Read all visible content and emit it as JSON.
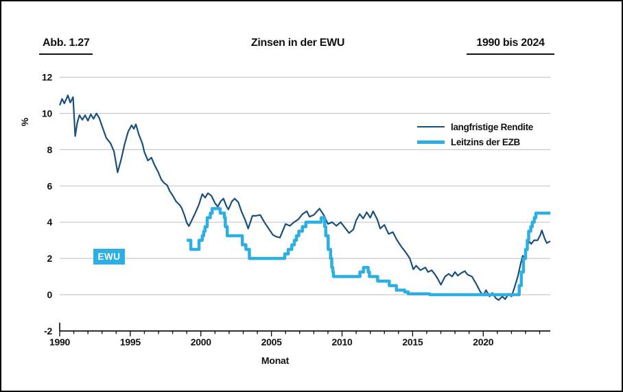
{
  "figure": {
    "label": "Abb. 1.27",
    "title": "Zinsen in der EWU",
    "period": "1990 bis 2024"
  },
  "colors": {
    "long_term_yield": "#184f7d",
    "ecb_rate": "#2eafe3",
    "gridline": "#c8c8c8",
    "axis": "#000000",
    "text": "#111111"
  },
  "chart_data": {
    "type": "line",
    "title": "Zinsen in der EWU",
    "xlabel": "Monat",
    "ylabel": "%",
    "xlim": [
      1990,
      2024.75
    ],
    "ylim": [
      -2,
      12
    ],
    "x_ticks": [
      1990,
      1995,
      2000,
      2005,
      2010,
      2015,
      2020
    ],
    "x_minor_tick_every": 1,
    "y_ticks": [
      -2,
      0,
      2,
      4,
      6,
      8,
      10,
      12
    ],
    "grid": "horizontal",
    "legend_position": "inside-upper-right",
    "annotation": {
      "text": "EWU",
      "x": 1993.1,
      "y": 2
    },
    "series": [
      {
        "name": "langfristige Rendite",
        "style": "line",
        "color": "#184f7d",
        "stroke_width": 2.2,
        "points": [
          [
            1990.0,
            10.45
          ],
          [
            1990.17,
            10.8
          ],
          [
            1990.33,
            10.55
          ],
          [
            1990.58,
            11.0
          ],
          [
            1990.75,
            10.6
          ],
          [
            1990.95,
            10.9
          ],
          [
            1991.1,
            8.75
          ],
          [
            1991.25,
            9.5
          ],
          [
            1991.4,
            9.9
          ],
          [
            1991.6,
            9.65
          ],
          [
            1991.8,
            9.9
          ],
          [
            1992.0,
            9.6
          ],
          [
            1992.2,
            9.95
          ],
          [
            1992.4,
            9.7
          ],
          [
            1992.6,
            10.0
          ],
          [
            1992.8,
            9.75
          ],
          [
            1993.0,
            9.3
          ],
          [
            1993.3,
            8.65
          ],
          [
            1993.6,
            8.35
          ],
          [
            1993.85,
            7.9
          ],
          [
            1994.1,
            6.75
          ],
          [
            1994.35,
            7.45
          ],
          [
            1994.6,
            8.3
          ],
          [
            1994.85,
            9.0
          ],
          [
            1995.1,
            9.35
          ],
          [
            1995.25,
            9.15
          ],
          [
            1995.4,
            9.4
          ],
          [
            1995.6,
            8.85
          ],
          [
            1995.85,
            8.35
          ],
          [
            1996.0,
            7.86
          ],
          [
            1996.25,
            7.4
          ],
          [
            1996.5,
            7.56
          ],
          [
            1996.7,
            7.18
          ],
          [
            1997.0,
            6.73
          ],
          [
            1997.2,
            6.35
          ],
          [
            1997.4,
            6.16
          ],
          [
            1997.6,
            6.05
          ],
          [
            1997.8,
            5.71
          ],
          [
            1998.0,
            5.48
          ],
          [
            1998.25,
            5.14
          ],
          [
            1998.5,
            4.95
          ],
          [
            1998.65,
            4.76
          ],
          [
            1998.85,
            4.35
          ],
          [
            1999.0,
            3.97
          ],
          [
            1999.15,
            3.78
          ],
          [
            1999.35,
            4.1
          ],
          [
            1999.6,
            4.5
          ],
          [
            1999.85,
            4.95
          ],
          [
            2000.1,
            5.55
          ],
          [
            2000.3,
            5.35
          ],
          [
            2000.5,
            5.6
          ],
          [
            2000.75,
            5.45
          ],
          [
            2001.0,
            5.05
          ],
          [
            2001.2,
            4.85
          ],
          [
            2001.4,
            5.15
          ],
          [
            2001.6,
            5.3
          ],
          [
            2001.8,
            4.9
          ],
          [
            2001.95,
            4.7
          ],
          [
            2002.2,
            5.15
          ],
          [
            2002.4,
            5.3
          ],
          [
            2002.65,
            5.1
          ],
          [
            2002.9,
            4.55
          ],
          [
            2003.15,
            4.1
          ],
          [
            2003.35,
            3.65
          ],
          [
            2003.65,
            4.35
          ],
          [
            2003.9,
            4.35
          ],
          [
            2004.2,
            4.4
          ],
          [
            2004.5,
            4.0
          ],
          [
            2004.8,
            3.65
          ],
          [
            2005.1,
            3.3
          ],
          [
            2005.35,
            3.2
          ],
          [
            2005.6,
            3.15
          ],
          [
            2006.0,
            3.9
          ],
          [
            2006.3,
            3.8
          ],
          [
            2006.6,
            4.0
          ],
          [
            2006.9,
            4.15
          ],
          [
            2007.2,
            4.45
          ],
          [
            2007.5,
            4.6
          ],
          [
            2007.7,
            4.3
          ],
          [
            2008.0,
            4.4
          ],
          [
            2008.4,
            4.75
          ],
          [
            2008.7,
            4.4
          ],
          [
            2009.0,
            3.9
          ],
          [
            2009.3,
            4.0
          ],
          [
            2009.6,
            3.8
          ],
          [
            2009.9,
            4.0
          ],
          [
            2010.2,
            3.7
          ],
          [
            2010.5,
            3.4
          ],
          [
            2010.8,
            3.6
          ],
          [
            2011.0,
            4.1
          ],
          [
            2011.25,
            4.45
          ],
          [
            2011.5,
            4.2
          ],
          [
            2011.75,
            4.55
          ],
          [
            2012.0,
            4.25
          ],
          [
            2012.2,
            4.6
          ],
          [
            2012.5,
            4.15
          ],
          [
            2012.7,
            3.65
          ],
          [
            2013.0,
            3.85
          ],
          [
            2013.3,
            3.35
          ],
          [
            2013.6,
            3.45
          ],
          [
            2013.9,
            3.0
          ],
          [
            2014.2,
            2.65
          ],
          [
            2014.5,
            2.35
          ],
          [
            2014.8,
            2.0
          ],
          [
            2015.05,
            1.4
          ],
          [
            2015.25,
            1.6
          ],
          [
            2015.55,
            1.35
          ],
          [
            2015.9,
            1.5
          ],
          [
            2016.1,
            1.25
          ],
          [
            2016.35,
            1.35
          ],
          [
            2016.6,
            1.1
          ],
          [
            2016.8,
            0.85
          ],
          [
            2017.0,
            0.55
          ],
          [
            2017.3,
            1.0
          ],
          [
            2017.55,
            1.15
          ],
          [
            2017.8,
            1.0
          ],
          [
            2018.0,
            1.25
          ],
          [
            2018.2,
            1.05
          ],
          [
            2018.45,
            1.2
          ],
          [
            2018.7,
            1.3
          ],
          [
            2018.9,
            1.1
          ],
          [
            2019.2,
            1.0
          ],
          [
            2019.5,
            0.6
          ],
          [
            2019.8,
            0.15
          ],
          [
            2020.0,
            -0.05
          ],
          [
            2020.2,
            0.25
          ],
          [
            2020.45,
            -0.1
          ],
          [
            2020.65,
            0.1
          ],
          [
            2020.9,
            -0.2
          ],
          [
            2021.1,
            -0.3
          ],
          [
            2021.35,
            -0.1
          ],
          [
            2021.55,
            -0.25
          ],
          [
            2021.8,
            0.05
          ],
          [
            2022.0,
            -0.1
          ],
          [
            2022.2,
            0.35
          ],
          [
            2022.45,
            1.0
          ],
          [
            2022.65,
            1.7
          ],
          [
            2022.8,
            2.15
          ],
          [
            2022.95,
            1.95
          ],
          [
            2023.1,
            2.6
          ],
          [
            2023.25,
            2.95
          ],
          [
            2023.4,
            2.8
          ],
          [
            2023.6,
            3.0
          ],
          [
            2023.85,
            3.0
          ],
          [
            2024.05,
            3.3
          ],
          [
            2024.15,
            3.55
          ],
          [
            2024.35,
            3.1
          ],
          [
            2024.5,
            2.85
          ],
          [
            2024.75,
            2.95
          ]
        ]
      },
      {
        "name": "Leitzins der EZB",
        "style": "step",
        "color": "#2eafe3",
        "stroke_width": 4.5,
        "points": [
          [
            1999.0,
            3.0
          ],
          [
            1999.29,
            2.5
          ],
          [
            1999.87,
            3.0
          ],
          [
            2000.1,
            3.25
          ],
          [
            2000.2,
            3.5
          ],
          [
            2000.3,
            3.75
          ],
          [
            2000.45,
            4.25
          ],
          [
            2000.67,
            4.5
          ],
          [
            2000.8,
            4.75
          ],
          [
            2001.37,
            4.5
          ],
          [
            2001.67,
            4.25
          ],
          [
            2001.73,
            3.75
          ],
          [
            2001.87,
            3.25
          ],
          [
            2002.94,
            2.75
          ],
          [
            2003.19,
            2.5
          ],
          [
            2003.44,
            2.0
          ],
          [
            2005.94,
            2.25
          ],
          [
            2006.19,
            2.5
          ],
          [
            2006.44,
            2.75
          ],
          [
            2006.62,
            3.0
          ],
          [
            2006.77,
            3.25
          ],
          [
            2006.94,
            3.5
          ],
          [
            2007.19,
            3.75
          ],
          [
            2007.44,
            4.0
          ],
          [
            2008.52,
            4.25
          ],
          [
            2008.77,
            3.75
          ],
          [
            2008.85,
            3.25
          ],
          [
            2009.02,
            2.5
          ],
          [
            2009.19,
            2.0
          ],
          [
            2009.27,
            1.5
          ],
          [
            2009.35,
            1.25
          ],
          [
            2009.39,
            1.0
          ],
          [
            2011.27,
            1.25
          ],
          [
            2011.52,
            1.5
          ],
          [
            2011.85,
            1.25
          ],
          [
            2011.94,
            1.0
          ],
          [
            2012.52,
            0.75
          ],
          [
            2013.35,
            0.5
          ],
          [
            2013.85,
            0.25
          ],
          [
            2014.44,
            0.15
          ],
          [
            2014.69,
            0.05
          ],
          [
            2016.21,
            0.0
          ],
          [
            2022.55,
            0.5
          ],
          [
            2022.7,
            1.25
          ],
          [
            2022.85,
            2.0
          ],
          [
            2023.0,
            2.5
          ],
          [
            2023.12,
            3.0
          ],
          [
            2023.22,
            3.5
          ],
          [
            2023.37,
            3.75
          ],
          [
            2023.47,
            4.0
          ],
          [
            2023.62,
            4.25
          ],
          [
            2023.73,
            4.5
          ],
          [
            2024.75,
            4.5
          ]
        ]
      }
    ]
  }
}
